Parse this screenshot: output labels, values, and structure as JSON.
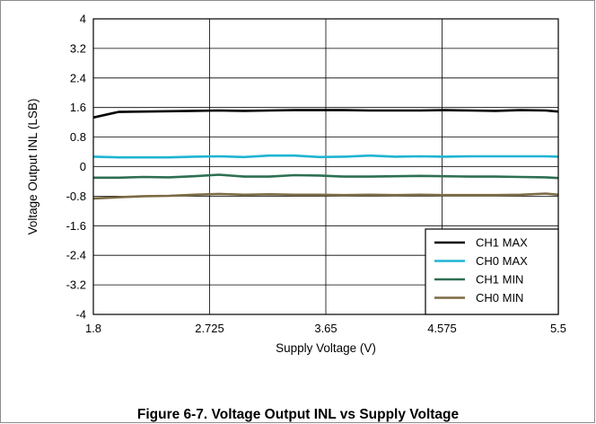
{
  "caption": "Figure 6-7. Voltage Output INL vs Supply Voltage",
  "chart_data": {
    "type": "line",
    "title": "",
    "xlabel": "Supply Voltage (V)",
    "ylabel": "Voltage Output INL (LSB)",
    "xlim": [
      1.8,
      5.5
    ],
    "ylim": [
      -4,
      4
    ],
    "x_ticks": [
      "1.8",
      "2.725",
      "3.65",
      "4.575",
      "5.5"
    ],
    "y_ticks": [
      "4",
      "3.2",
      "2.4",
      "1.6",
      "0.8",
      "0",
      "-0.8",
      "-1.6",
      "-2.4",
      "-3.2",
      "-4"
    ],
    "grid": true,
    "legend_position": "bottom-right",
    "x": [
      1.8,
      2.0,
      2.2,
      2.4,
      2.6,
      2.8,
      3.0,
      3.2,
      3.4,
      3.6,
      3.8,
      4.0,
      4.2,
      4.4,
      4.6,
      4.8,
      5.0,
      5.2,
      5.4,
      5.5
    ],
    "series": [
      {
        "name": "CH1 MAX",
        "color": "#000000",
        "values": [
          1.33,
          1.48,
          1.49,
          1.5,
          1.51,
          1.52,
          1.51,
          1.52,
          1.53,
          1.53,
          1.53,
          1.52,
          1.52,
          1.52,
          1.53,
          1.52,
          1.51,
          1.53,
          1.52,
          1.49
        ]
      },
      {
        "name": "CH0 MAX",
        "color": "#1eb4d2",
        "values": [
          0.27,
          0.25,
          0.25,
          0.25,
          0.27,
          0.28,
          0.26,
          0.3,
          0.3,
          0.26,
          0.27,
          0.3,
          0.27,
          0.28,
          0.27,
          0.28,
          0.28,
          0.28,
          0.28,
          0.27
        ]
      },
      {
        "name": "CH1 MIN",
        "color": "#2e6f52",
        "values": [
          -0.3,
          -0.3,
          -0.28,
          -0.29,
          -0.26,
          -0.22,
          -0.27,
          -0.27,
          -0.23,
          -0.24,
          -0.27,
          -0.27,
          -0.26,
          -0.25,
          -0.26,
          -0.27,
          -0.27,
          -0.28,
          -0.29,
          -0.31
        ]
      },
      {
        "name": "CH0 MIN",
        "color": "#7b6a43",
        "values": [
          -0.86,
          -0.83,
          -0.8,
          -0.79,
          -0.76,
          -0.74,
          -0.76,
          -0.75,
          -0.76,
          -0.76,
          -0.77,
          -0.76,
          -0.77,
          -0.76,
          -0.77,
          -0.77,
          -0.77,
          -0.76,
          -0.73,
          -0.76
        ]
      }
    ]
  }
}
